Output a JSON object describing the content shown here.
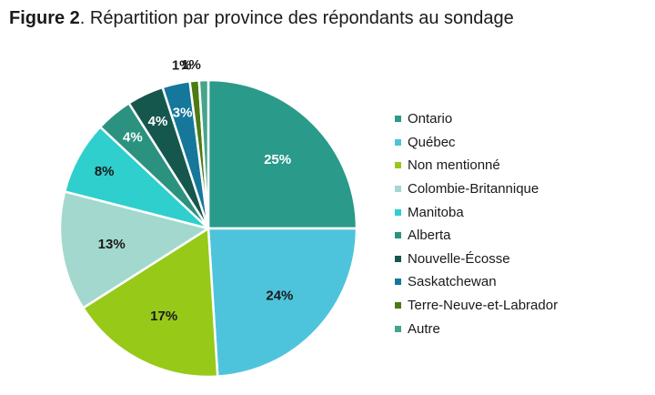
{
  "figure": {
    "label": "Figure 2",
    "caption": ". Répartition par province des répondants au sondage"
  },
  "chart_data": {
    "type": "pie",
    "title": "Figure 2. Répartition par province des répondants au sondage",
    "legend_position": "right",
    "slices": [
      {
        "label": "Ontario",
        "value": 25,
        "display": "25%",
        "color": "#2a9a8a"
      },
      {
        "label": "Québec",
        "value": 24,
        "display": "24%",
        "color": "#4ec4dc"
      },
      {
        "label": "Non mentionné",
        "value": 17,
        "display": "17%",
        "color": "#97c919"
      },
      {
        "label": "Colombie-Britannique",
        "value": 13,
        "display": "13%",
        "color": "#a3d8ce"
      },
      {
        "label": "Manitoba",
        "value": 8,
        "display": "8%",
        "color": "#2ecfcc"
      },
      {
        "label": "Alberta",
        "value": 4,
        "display": "4%",
        "color": "#2b9280"
      },
      {
        "label": "Nouvelle-Écosse",
        "value": 4,
        "display": "4%",
        "color": "#16574d"
      },
      {
        "label": "Saskatchewan",
        "value": 3,
        "display": "3%",
        "color": "#15789a"
      },
      {
        "label": "Terre-Neuve-et-Labrador",
        "value": 1,
        "display": "1%",
        "color": "#4d7a12"
      },
      {
        "label": "Autre",
        "value": 1,
        "display": "1%",
        "color": "#45a48c"
      }
    ]
  }
}
